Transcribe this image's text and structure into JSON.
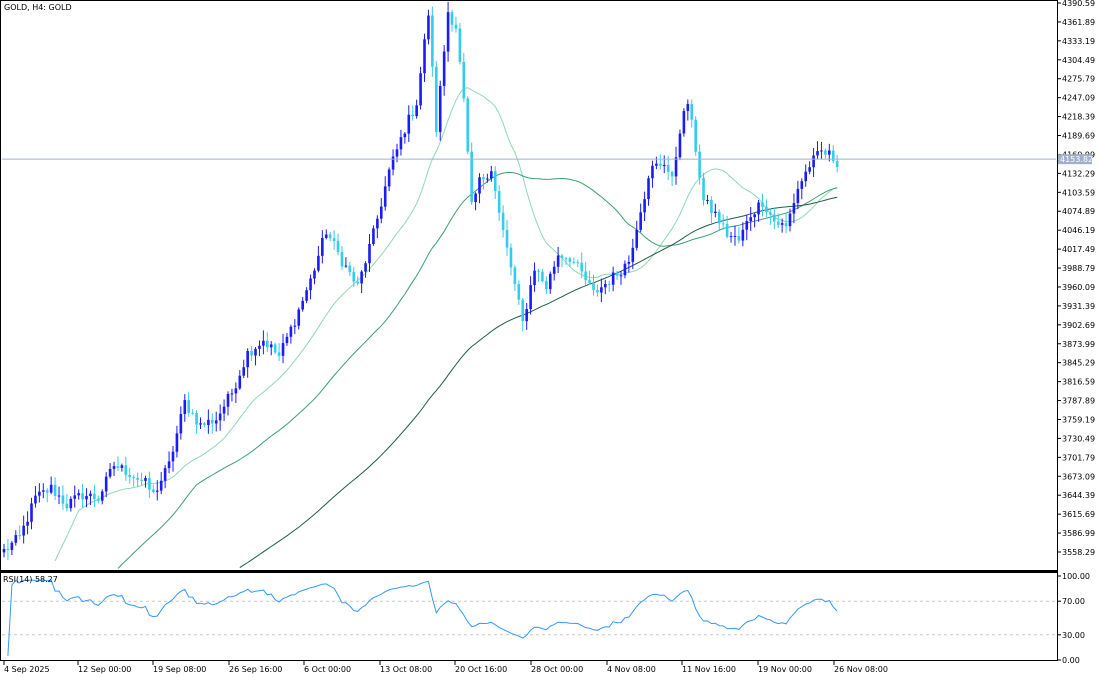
{
  "main_title": "GOLD, H4:  GOLD",
  "rsi_title": "RSI(14) 58.27",
  "current_price_label": "4153.82",
  "colors": {
    "bull": "#1a1aff",
    "bear": "#33ccee",
    "ma_fast": "#8fd9b6",
    "ma_mid": "#3f9e6e",
    "ma_slow": "#1f5c45",
    "rsi_line": "#3399ff",
    "price_line": "#9fb0c8",
    "axis": "#000000"
  },
  "chart_data": [
    {
      "type": "candlestick",
      "symbol": "GOLD",
      "timeframe": "H4",
      "ylim": [
        3540,
        4395
      ],
      "price_ticks": [
        "4390.59",
        "4361.89",
        "4333.19",
        "4304.49",
        "4275.79",
        "4247.09",
        "4218.39",
        "4189.69",
        "4160.99",
        "4132.29",
        "4103.59",
        "4074.89",
        "4046.19",
        "4017.49",
        "3988.79",
        "3960.09",
        "3931.39",
        "3902.69",
        "3873.99",
        "3845.29",
        "3816.59",
        "3787.89",
        "3759.19",
        "3730.49",
        "3701.79",
        "3673.09",
        "3644.39",
        "3615.69",
        "3586.99",
        "3558.29"
      ],
      "x_ticks": [
        "4 Sep 2025",
        "12 Sep 00:00",
        "19 Sep 08:00",
        "26 Sep 16:00",
        "6 Oct 00:00",
        "13 Oct 08:00",
        "20 Oct 16:00",
        "28 Oct 00:00",
        "4 Nov 08:00",
        "11 Nov 16:00",
        "19 Nov 00:00",
        "26 Nov 08:00"
      ],
      "current_price": 4153.82,
      "anchors": [
        [
          0,
          3560
        ],
        [
          4,
          3580
        ],
        [
          8,
          3640
        ],
        [
          12,
          3655
        ],
        [
          16,
          3630
        ],
        [
          20,
          3645
        ],
        [
          24,
          3640
        ],
        [
          28,
          3690
        ],
        [
          32,
          3678
        ],
        [
          36,
          3662
        ],
        [
          38,
          3645
        ],
        [
          42,
          3690
        ],
        [
          46,
          3785
        ],
        [
          50,
          3750
        ],
        [
          54,
          3760
        ],
        [
          58,
          3800
        ],
        [
          62,
          3860
        ],
        [
          66,
          3880
        ],
        [
          70,
          3855
        ],
        [
          74,
          3910
        ],
        [
          78,
          3970
        ],
        [
          82,
          4045
        ],
        [
          86,
          4000
        ],
        [
          90,
          3960
        ],
        [
          94,
          4040
        ],
        [
          98,
          4135
        ],
        [
          102,
          4200
        ],
        [
          105,
          4240
        ],
        [
          108,
          4375
        ],
        [
          110,
          4200
        ],
        [
          113,
          4378
        ],
        [
          115,
          4355
        ],
        [
          117,
          4240
        ],
        [
          119,
          4080
        ],
        [
          121,
          4120
        ],
        [
          124,
          4140
        ],
        [
          126,
          4070
        ],
        [
          129,
          3990
        ],
        [
          132,
          3905
        ],
        [
          135,
          3990
        ],
        [
          138,
          3960
        ],
        [
          141,
          4010
        ],
        [
          144,
          4005
        ],
        [
          147,
          3980
        ],
        [
          150,
          3950
        ],
        [
          153,
          3965
        ],
        [
          156,
          3980
        ],
        [
          159,
          4000
        ],
        [
          162,
          4080
        ],
        [
          165,
          4140
        ],
        [
          168,
          4150
        ],
        [
          170,
          4120
        ],
        [
          172,
          4200
        ],
        [
          174,
          4240
        ],
        [
          176,
          4170
        ],
        [
          178,
          4090
        ],
        [
          181,
          4070
        ],
        [
          184,
          4040
        ],
        [
          187,
          4030
        ],
        [
          190,
          4070
        ],
        [
          193,
          4090
        ],
        [
          196,
          4060
        ],
        [
          199,
          4050
        ],
        [
          202,
          4110
        ],
        [
          205,
          4145
        ],
        [
          208,
          4165
        ],
        [
          210,
          4160
        ],
        [
          212,
          4150
        ]
      ],
      "moving_averages": [
        {
          "period_hint": "fast",
          "color_key": "ma_fast"
        },
        {
          "period_hint": "mid",
          "color_key": "ma_mid"
        },
        {
          "period_hint": "slow",
          "color_key": "ma_slow"
        }
      ]
    },
    {
      "type": "line",
      "indicator": "RSI(14)",
      "value": 58.27,
      "ylim": [
        0,
        100
      ],
      "levels": [
        30,
        70
      ],
      "y_ticks": [
        "100.00",
        "70.00",
        "30.00",
        "0.00"
      ]
    }
  ]
}
